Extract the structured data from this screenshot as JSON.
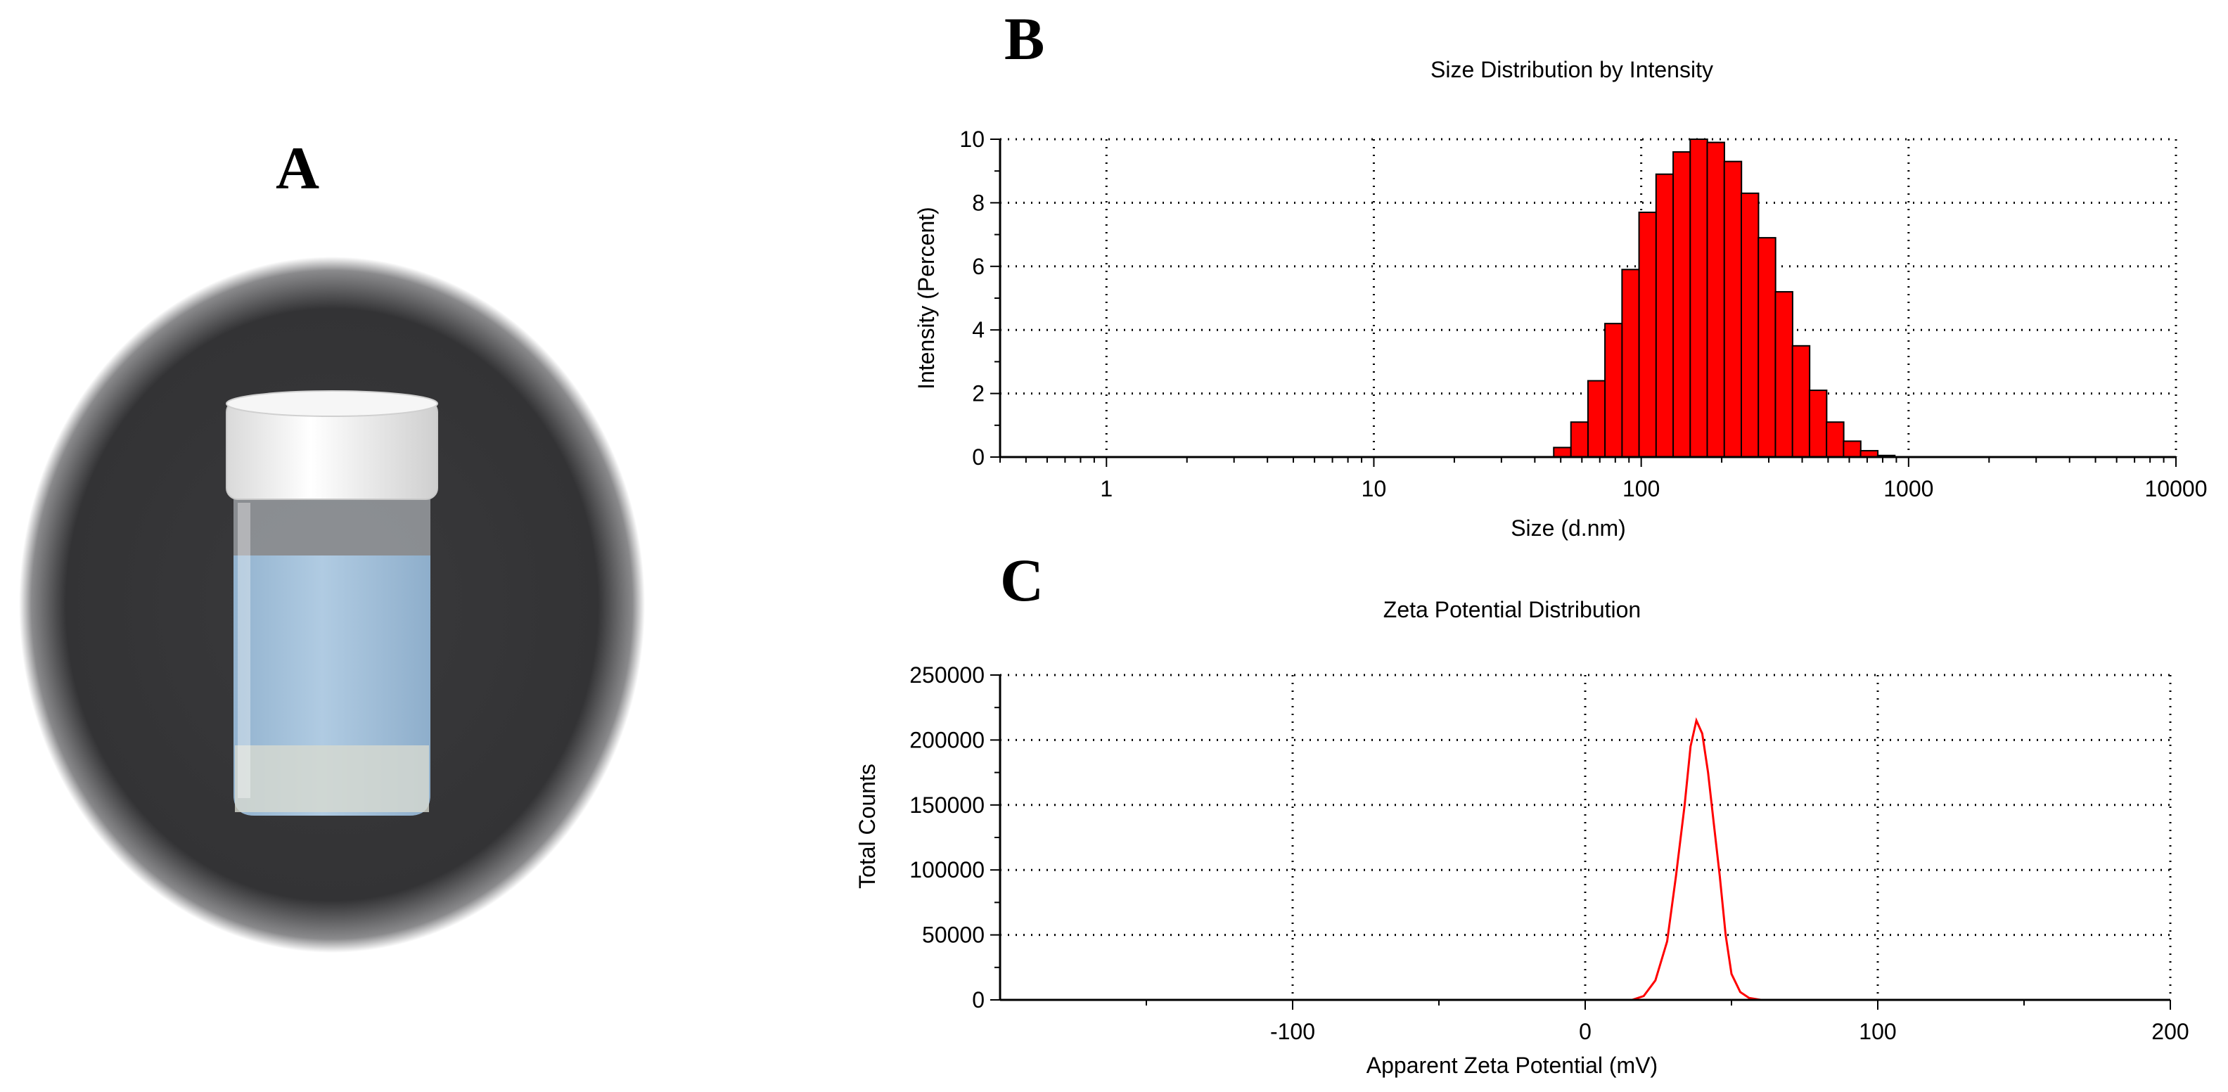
{
  "panels": {
    "a": "A",
    "b": "B",
    "c": "C"
  },
  "photo": {
    "subject": "vial-icon",
    "colors": {
      "background": "#3a3a3c",
      "cap": "#f2f2f2",
      "liquid": "#a9c6df"
    }
  },
  "chart_data": [
    {
      "type": "bar",
      "title": "Size Distribution by Intensity",
      "xlabel": "Size (d.nm)",
      "ylabel": "Intensity (Percent)",
      "x_scale": "log",
      "xlim": [
        0.4,
        10000
      ],
      "ylim": [
        0,
        10
      ],
      "x_ticks": [
        1,
        10,
        100,
        1000,
        10000
      ],
      "x_tick_labels": [
        "1",
        "10",
        "100",
        "1000",
        "10000"
      ],
      "y_ticks": [
        0,
        2,
        4,
        6,
        8,
        10
      ],
      "y_tick_labels": [
        "0",
        "2",
        "4",
        "6",
        "8",
        "10"
      ],
      "grid": true,
      "bar_color": "#ff0000",
      "x": [
        50.7,
        58.8,
        68.1,
        78.8,
        91.3,
        105.7,
        122.4,
        141.8,
        164.2,
        190.1,
        220.2,
        255.0,
        295.3,
        342.0,
        396.1,
        458.7,
        531.2,
        615.1,
        712.4,
        825.0
      ],
      "values": [
        0.3,
        1.1,
        2.4,
        4.2,
        5.9,
        7.7,
        8.9,
        9.6,
        10.0,
        9.9,
        9.3,
        8.3,
        6.9,
        5.2,
        3.5,
        2.1,
        1.1,
        0.5,
        0.2,
        0.05
      ]
    },
    {
      "type": "line",
      "title": "Zeta Potential Distribution",
      "xlabel": "Apparent Zeta Potential (mV)",
      "ylabel": "Total Counts",
      "xlim": [
        -200,
        200
      ],
      "ylim": [
        0,
        250000
      ],
      "x_ticks": [
        -100,
        0,
        100,
        200
      ],
      "x_tick_labels": [
        "-100",
        "0",
        "100",
        "200"
      ],
      "y_ticks": [
        0,
        50000,
        100000,
        150000,
        200000,
        250000
      ],
      "y_tick_labels": [
        "0",
        "50000",
        "100000",
        "150000",
        "200000",
        "250000"
      ],
      "grid": true,
      "line_color": "#ff0000",
      "x": [
        -150,
        16,
        20,
        24,
        28,
        31,
        34,
        36,
        38,
        40,
        42,
        44,
        46,
        48,
        50,
        53,
        56,
        60,
        130
      ],
      "y": [
        0,
        0,
        3000,
        15000,
        45000,
        95000,
        150000,
        195000,
        215000,
        205000,
        175000,
        135000,
        95000,
        50000,
        20000,
        6000,
        1500,
        0,
        0
      ]
    }
  ]
}
